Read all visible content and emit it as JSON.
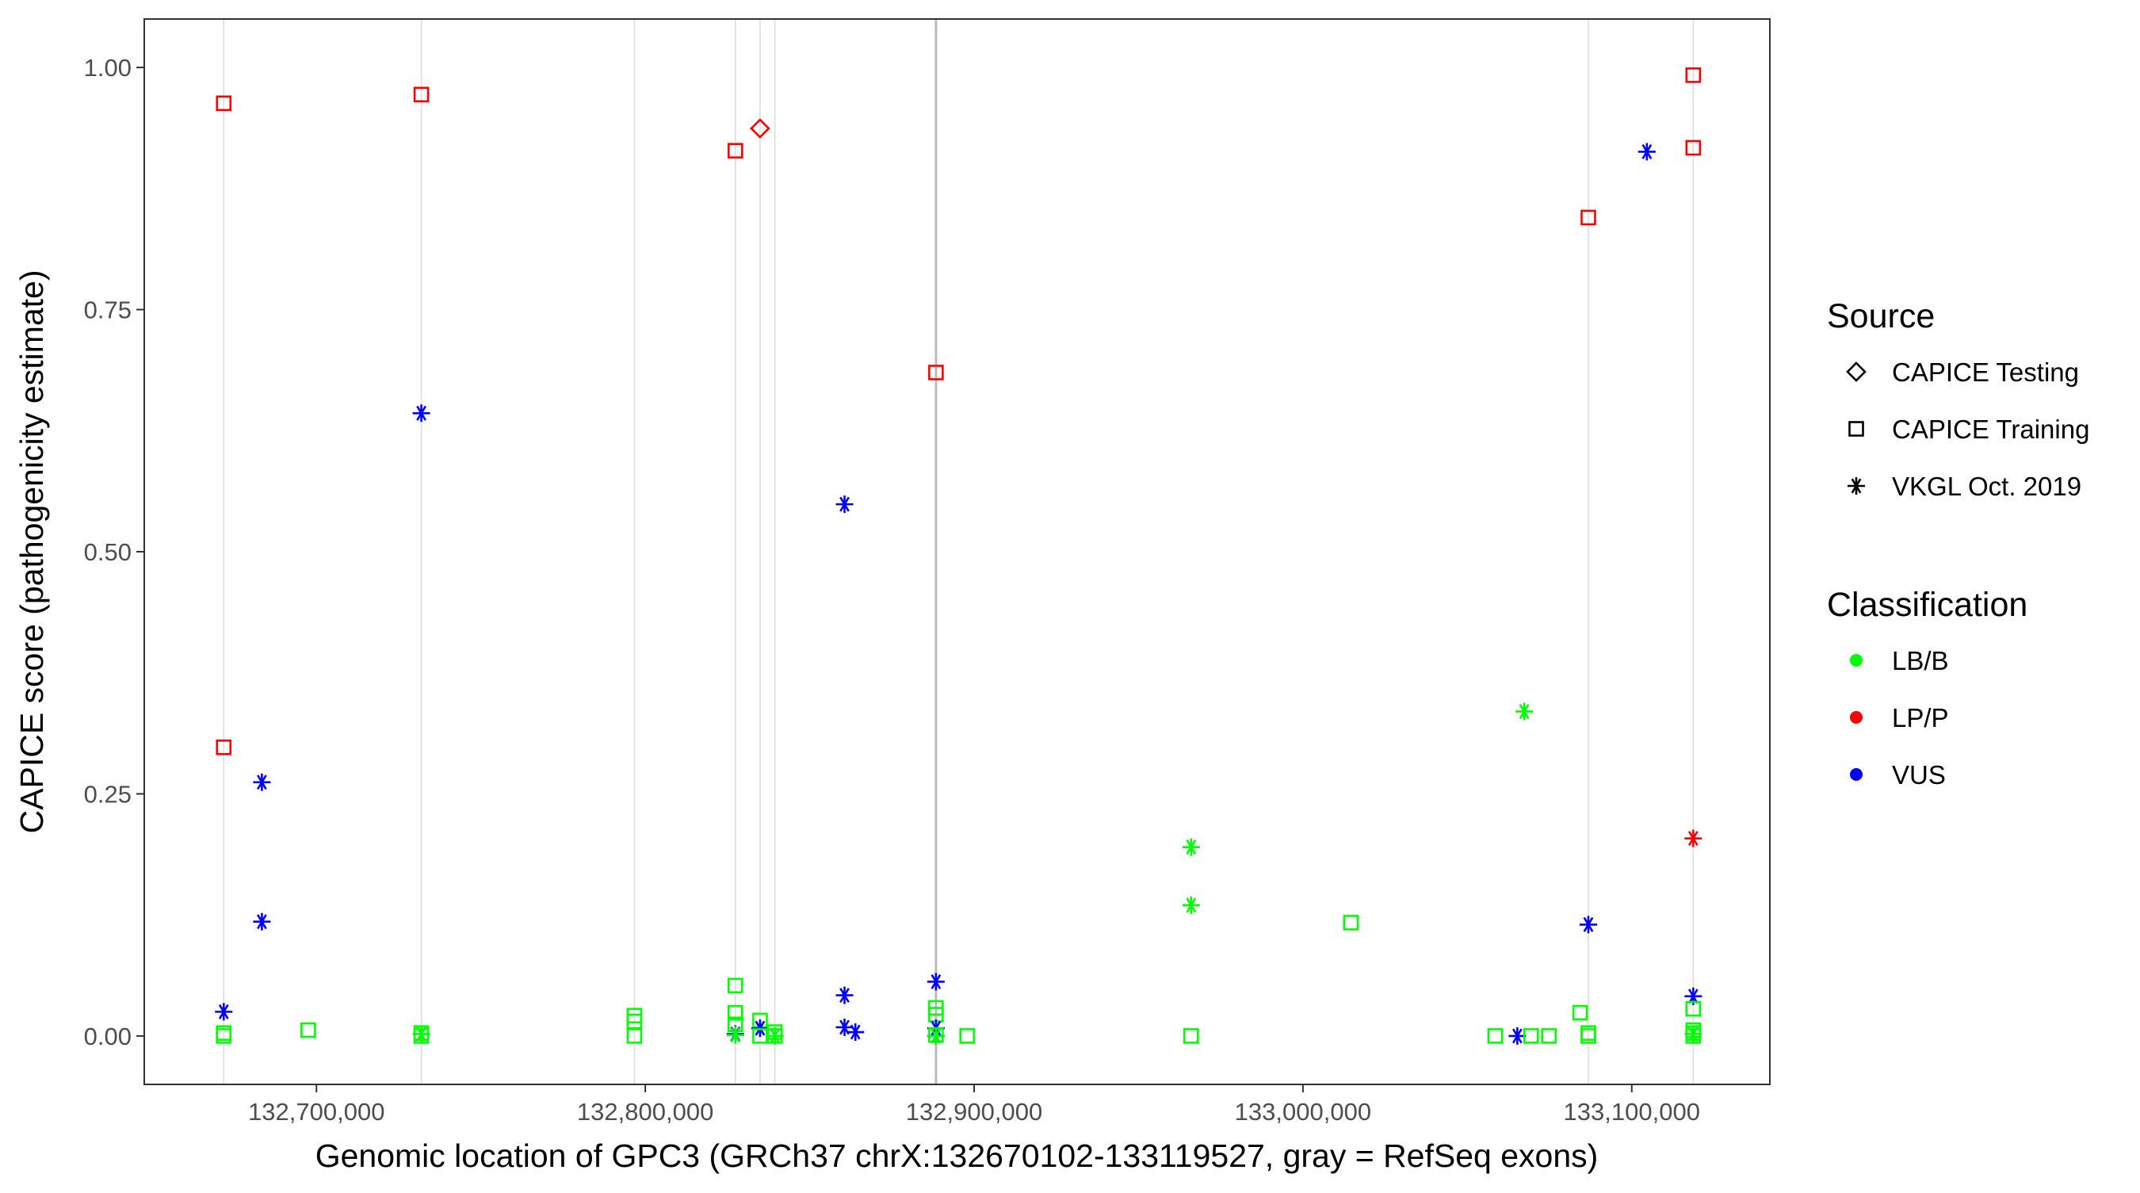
{
  "chart_data": {
    "type": "scatter",
    "xlabel": "Genomic location of GPC3 (GRCh37 chrX:132670102-133119527, gray = RefSeq exons)",
    "ylabel": "CAPICE score (pathogenicity estimate)",
    "xlim": [
      132647631,
      133141998
    ],
    "ylim": [
      -0.05,
      1.05
    ],
    "x_ticks": [
      132700000,
      132800000,
      132900000,
      133000000,
      133100000
    ],
    "x_tick_labels": [
      "132,700,000",
      "132,800,000",
      "132,900,000",
      "133,000,000",
      "133,100,000"
    ],
    "y_ticks": [
      0,
      0.25,
      0.5,
      0.75,
      1
    ],
    "y_tick_labels": [
      "0.00",
      "0.25",
      "0.50",
      "0.75",
      "1.00"
    ],
    "grid": false,
    "legend_placement": "right",
    "exons": [
      {
        "x": 132671800,
        "strong": false
      },
      {
        "x": 132731900,
        "strong": false
      },
      {
        "x": 132796700,
        "strong": false
      },
      {
        "x": 132827400,
        "strong": false
      },
      {
        "x": 132834900,
        "strong": false
      },
      {
        "x": 132839400,
        "strong": false
      },
      {
        "x": 132888400,
        "strong": true
      },
      {
        "x": 133086800,
        "strong": false
      },
      {
        "x": 133118700,
        "strong": false
      }
    ],
    "legend": {
      "source_title": "Source",
      "sources": [
        {
          "key": "testing",
          "label": "CAPICE Testing",
          "shape": "diamond"
        },
        {
          "key": "training",
          "label": "CAPICE Training",
          "shape": "square"
        },
        {
          "key": "vkgl",
          "label": "VKGL Oct. 2019",
          "shape": "star"
        }
      ],
      "class_title": "Classification",
      "classes": [
        {
          "key": "LB",
          "label": "LB/B",
          "color": "#00ff00"
        },
        {
          "key": "LP",
          "label": "LP/P",
          "color": "#ff0000"
        },
        {
          "key": "VUS",
          "label": "VUS",
          "color": "#0000ff"
        }
      ]
    },
    "points": [
      [
        132671800,
        0.963,
        "training",
        "LP"
      ],
      [
        132671800,
        0.298,
        "training",
        "LP"
      ],
      [
        132671800,
        0.025,
        "vkgl",
        "VUS"
      ],
      [
        132671800,
        0.003,
        "training",
        "LB"
      ],
      [
        132671800,
        0.0,
        "training",
        "LB"
      ],
      [
        132683400,
        0.262,
        "vkgl",
        "VUS"
      ],
      [
        132683400,
        0.118,
        "vkgl",
        "VUS"
      ],
      [
        132697500,
        0.006,
        "training",
        "LB"
      ],
      [
        132731900,
        0.972,
        "training",
        "LP"
      ],
      [
        132731900,
        0.643,
        "vkgl",
        "VUS"
      ],
      [
        132731900,
        0.003,
        "training",
        "LB"
      ],
      [
        132731900,
        0.002,
        "vkgl",
        "LB"
      ],
      [
        132731900,
        0.0,
        "training",
        "LB"
      ],
      [
        132796700,
        0.021,
        "training",
        "LB"
      ],
      [
        132796700,
        0.015,
        "training",
        "LB"
      ],
      [
        132796700,
        0.0,
        "training",
        "LB"
      ],
      [
        132827400,
        0.914,
        "training",
        "LP"
      ],
      [
        132827400,
        0.052,
        "training",
        "LB"
      ],
      [
        132827400,
        0.024,
        "training",
        "LB"
      ],
      [
        132827400,
        0.012,
        "training",
        "LB"
      ],
      [
        132827400,
        0.002,
        "vkgl",
        "VUS"
      ],
      [
        132827400,
        0.001,
        "vkgl",
        "LB"
      ],
      [
        132834900,
        0.937,
        "testing",
        "LP"
      ],
      [
        132834900,
        0.016,
        "training",
        "LB"
      ],
      [
        132834900,
        0.008,
        "vkgl",
        "LB"
      ],
      [
        132834900,
        0.008,
        "vkgl",
        "VUS"
      ],
      [
        132834900,
        0.0,
        "training",
        "LB"
      ],
      [
        132839400,
        0.004,
        "training",
        "LB"
      ],
      [
        132839400,
        0.0,
        "vkgl",
        "LB"
      ],
      [
        132839400,
        0.0,
        "training",
        "LB"
      ],
      [
        132860600,
        0.549,
        "vkgl",
        "VUS"
      ],
      [
        132860600,
        0.042,
        "vkgl",
        "VUS"
      ],
      [
        132860600,
        0.009,
        "vkgl",
        "VUS"
      ],
      [
        132863900,
        0.004,
        "vkgl",
        "VUS"
      ],
      [
        132888400,
        0.685,
        "training",
        "LP"
      ],
      [
        132888400,
        0.056,
        "vkgl",
        "VUS"
      ],
      [
        132888400,
        0.029,
        "training",
        "LB"
      ],
      [
        132888400,
        0.022,
        "training",
        "LB"
      ],
      [
        132888400,
        0.008,
        "vkgl",
        "VUS"
      ],
      [
        132888400,
        0.001,
        "training",
        "LB"
      ],
      [
        132888400,
        0.0,
        "vkgl",
        "VUS"
      ],
      [
        132888400,
        0.0,
        "vkgl",
        "LB"
      ],
      [
        132897900,
        0.0,
        "training",
        "LB"
      ],
      [
        132966000,
        0.195,
        "vkgl",
        "LB"
      ],
      [
        132966000,
        0.135,
        "vkgl",
        "LB"
      ],
      [
        132966000,
        0.0,
        "training",
        "LB"
      ],
      [
        133014600,
        0.117,
        "training",
        "LB"
      ],
      [
        133058500,
        0.0,
        "training",
        "LB"
      ],
      [
        133065200,
        0.0,
        "vkgl",
        "VUS"
      ],
      [
        133067300,
        0.335,
        "vkgl",
        "LB"
      ],
      [
        133069400,
        0.0,
        "training",
        "LB"
      ],
      [
        133074800,
        0.0,
        "training",
        "LB"
      ],
      [
        133084300,
        0.024,
        "training",
        "LB"
      ],
      [
        133086800,
        0.845,
        "training",
        "LP"
      ],
      [
        133086800,
        0.115,
        "vkgl",
        "VUS"
      ],
      [
        133086800,
        0.003,
        "training",
        "LB"
      ],
      [
        133086800,
        0.0,
        "training",
        "LB"
      ],
      [
        133104600,
        0.913,
        "vkgl",
        "VUS"
      ],
      [
        133118700,
        0.992,
        "training",
        "LP"
      ],
      [
        133118700,
        0.917,
        "training",
        "LP"
      ],
      [
        133118700,
        0.204,
        "vkgl",
        "LP"
      ],
      [
        133118700,
        0.041,
        "vkgl",
        "VUS"
      ],
      [
        133118700,
        0.028,
        "training",
        "LB"
      ],
      [
        133118700,
        0.006,
        "training",
        "LB"
      ],
      [
        133118700,
        0.003,
        "training",
        "LB"
      ],
      [
        133118700,
        0.002,
        "vkgl",
        "LB"
      ],
      [
        133118700,
        0.0,
        "training",
        "LB"
      ]
    ]
  }
}
